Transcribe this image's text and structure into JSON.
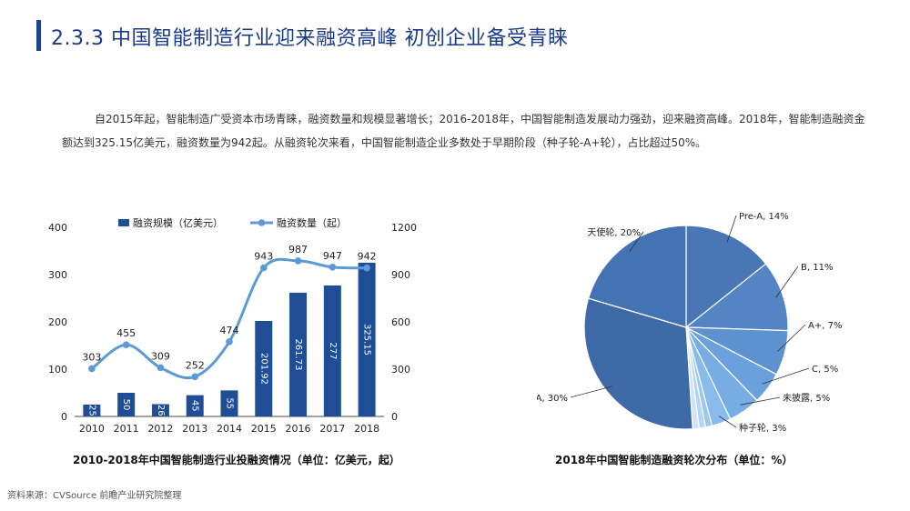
{
  "header": {
    "title": "2.3.3 中国智能制造行业迎来融资高峰 初创企业备受青睐"
  },
  "intro": {
    "text": "自2015年起，智能制造广受资本市场青睐，融资数量和规模显著增长；2016-2018年，中国智能制造发展动力强劲，迎来融资高峰。2018年，智能制造融资金额达到325.15亿美元，融资数量为942起。从融资轮次来看，中国智能制造企业多数处于早期阶段（种子轮-A+轮），占比超过50%。"
  },
  "captions": {
    "left": "2010-2018年中国智能制造行业投融资情况（单位：亿美元，起）",
    "right": "2018年中国智能制造融资轮次分布（单位：%）"
  },
  "source": "资料来源：CVSource 前瞻产业研究院整理",
  "colors": {
    "title": "#1a3a8a",
    "bar": "#1f4e96",
    "line": "#5b9bd5"
  },
  "chart_data": [
    {
      "type": "bar",
      "categories": [
        "2010",
        "2011",
        "2012",
        "2013",
        "2014",
        "2015",
        "2016",
        "2017",
        "2018"
      ],
      "series": [
        {
          "name": "融资规模（亿美元）",
          "type": "bar",
          "axis": "left",
          "values": [
            25,
            50,
            26,
            45,
            55,
            201.92,
            261.73,
            277,
            325.15
          ],
          "labels": [
            "25",
            "50",
            "26",
            "45",
            "55",
            "201.92",
            "261.73",
            "277",
            "325.15"
          ]
        },
        {
          "name": "融资数量（起）",
          "type": "line",
          "axis": "right",
          "values": [
            303,
            455,
            309,
            252,
            474,
            943,
            987,
            947,
            942
          ],
          "labels": [
            "303",
            "455",
            "309",
            "252",
            "474",
            "943",
            "987",
            "947",
            "942"
          ]
        }
      ],
      "ylim": [
        0,
        400
      ],
      "y2lim": [
        0,
        1200
      ],
      "yticks": [
        "0",
        "100",
        "200",
        "300",
        "400"
      ],
      "y2ticks": [
        "0",
        "300",
        "600",
        "900",
        "1200"
      ],
      "legend": "top"
    },
    {
      "type": "pie",
      "slices": [
        {
          "label": "Pre-A",
          "value": 14,
          "text": "Pre-A, 14%"
        },
        {
          "label": "B",
          "value": 11,
          "text": "B, 11%"
        },
        {
          "label": "A+",
          "value": 7,
          "text": "A+, 7%"
        },
        {
          "label": "C",
          "value": 5,
          "text": "C, 5%"
        },
        {
          "label": "未披露",
          "value": 5,
          "text": "未披露, 5%"
        },
        {
          "label": "种子轮",
          "value": 3,
          "text": "种子轮, 3%"
        },
        {
          "label": "",
          "value": 1,
          "text": ""
        },
        {
          "label": "",
          "value": 1,
          "text": ""
        },
        {
          "label": "",
          "value": 1,
          "text": ""
        },
        {
          "label": "A",
          "value": 30,
          "text": "A, 30%"
        },
        {
          "label": "天使轮",
          "value": 20,
          "text": "天使轮, 20%"
        }
      ]
    }
  ]
}
